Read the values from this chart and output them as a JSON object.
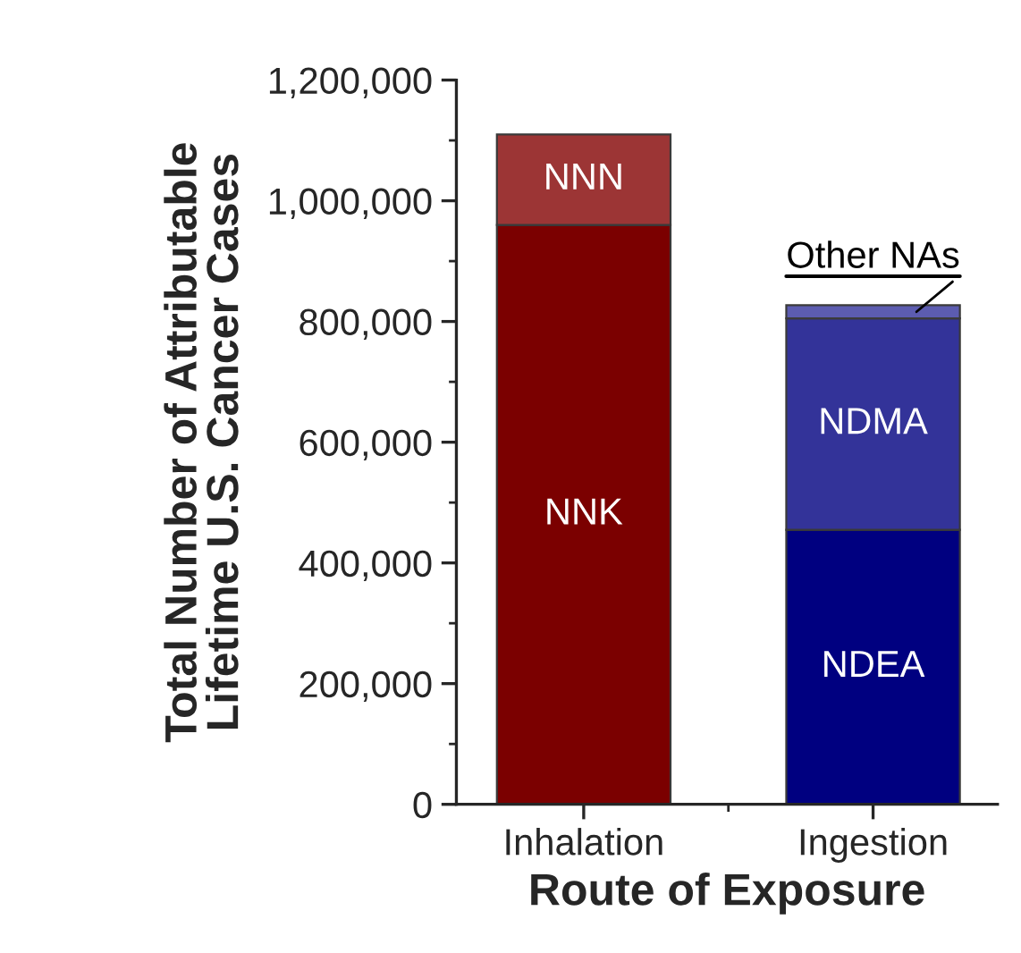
{
  "chart_data": {
    "type": "bar",
    "stacked": true,
    "xlabel": "Route of Exposure",
    "ylabel": "Total Number of Attributable\nLifetime U.S. Cancer Cases",
    "categories": [
      "Inhalation",
      "Ingestion"
    ],
    "series": [
      {
        "name": "NNK",
        "color": "#7b0000",
        "values": [
          960000,
          null
        ]
      },
      {
        "name": "NNN",
        "color": "#9c3535",
        "values": [
          150000,
          null
        ]
      },
      {
        "name": "NDEA",
        "color": "#000080",
        "values": [
          null,
          455000
        ]
      },
      {
        "name": "NDMA",
        "color": "#333399",
        "values": [
          null,
          350000
        ]
      },
      {
        "name": "Other NAs",
        "color": "#5c5cb0",
        "values": [
          null,
          22000
        ]
      }
    ],
    "ylim": [
      0,
      1200000
    ],
    "yticks": [
      {
        "value": 0,
        "label": "0"
      },
      {
        "value": 200000,
        "label": "200,000"
      },
      {
        "value": 400000,
        "label": "400,000"
      },
      {
        "value": 600000,
        "label": "600,000"
      },
      {
        "value": 800000,
        "label": "800,000"
      },
      {
        "value": 1000000,
        "label": "1,000,000"
      },
      {
        "value": 1200000,
        "label": "1,200,000"
      }
    ],
    "grid": false,
    "legend": false
  }
}
